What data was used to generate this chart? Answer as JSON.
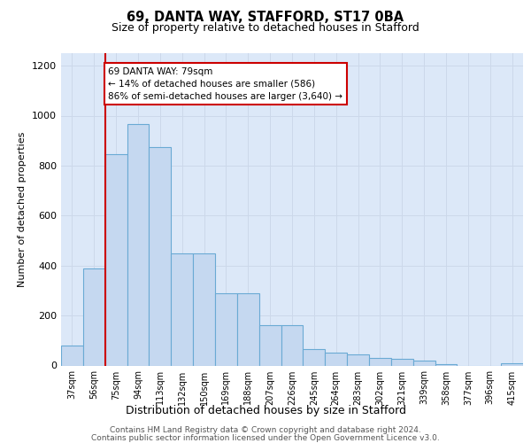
{
  "title": "69, DANTA WAY, STAFFORD, ST17 0BA",
  "subtitle": "Size of property relative to detached houses in Stafford",
  "xlabel": "Distribution of detached houses by size in Stafford",
  "ylabel": "Number of detached properties",
  "categories": [
    "37sqm",
    "56sqm",
    "75sqm",
    "94sqm",
    "113sqm",
    "132sqm",
    "150sqm",
    "169sqm",
    "188sqm",
    "207sqm",
    "226sqm",
    "245sqm",
    "264sqm",
    "283sqm",
    "302sqm",
    "321sqm",
    "339sqm",
    "358sqm",
    "377sqm",
    "396sqm",
    "415sqm"
  ],
  "values": [
    80,
    390,
    845,
    965,
    875,
    450,
    450,
    290,
    290,
    160,
    160,
    65,
    50,
    45,
    30,
    25,
    20,
    5,
    0,
    0,
    10
  ],
  "bar_color": "#c5d8f0",
  "bar_edge_color": "#6aaad4",
  "red_line_index": 2,
  "annotation_line1": "69 DANTA WAY: 79sqm",
  "annotation_line2": "← 14% of detached houses are smaller (586)",
  "annotation_line3": "86% of semi-detached houses are larger (3,640) →",
  "red_line_color": "#cc0000",
  "annotation_edge_color": "#cc0000",
  "grid_color": "#ccd8ea",
  "bg_color": "#dce8f8",
  "footer_line1": "Contains HM Land Registry data © Crown copyright and database right 2024.",
  "footer_line2": "Contains public sector information licensed under the Open Government Licence v3.0.",
  "ylim_max": 1250,
  "yticks": [
    0,
    200,
    400,
    600,
    800,
    1000,
    1200
  ]
}
